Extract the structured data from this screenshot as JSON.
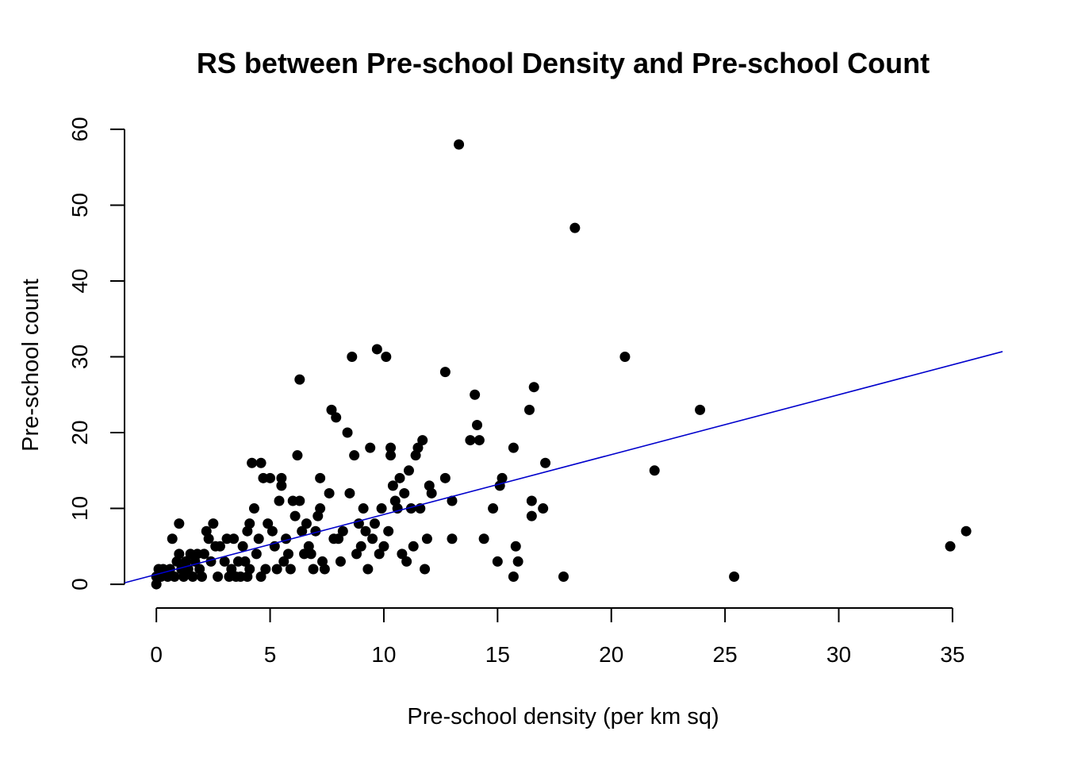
{
  "chart_data": {
    "type": "scatter",
    "title": "RS between Pre-school Density and Pre-school Count",
    "xlabel": "Pre-school density (per km sq)",
    "ylabel": "Pre-school count",
    "xlim": [
      -1.4,
      37.2
    ],
    "ylim": [
      -2.4,
      62.4
    ],
    "xticks": [
      "0",
      "5",
      "10",
      "15",
      "20",
      "25",
      "30",
      "35"
    ],
    "yticks": [
      "0",
      "10",
      "20",
      "30",
      "40",
      "50",
      "60"
    ],
    "grid": false,
    "colors": {
      "points": "#000000",
      "fit_line": "#0000cc"
    },
    "fit_line": {
      "intercept": 1.3,
      "slope": 0.79
    },
    "points": [
      [
        0.0,
        0
      ],
      [
        0.0,
        1
      ],
      [
        0.1,
        2
      ],
      [
        0.2,
        1
      ],
      [
        0.3,
        2
      ],
      [
        0.5,
        1
      ],
      [
        0.6,
        2
      ],
      [
        0.7,
        6
      ],
      [
        0.8,
        1
      ],
      [
        0.9,
        3
      ],
      [
        1.0,
        4
      ],
      [
        1.0,
        8
      ],
      [
        1.1,
        2
      ],
      [
        1.2,
        1
      ],
      [
        1.3,
        3
      ],
      [
        1.4,
        2
      ],
      [
        1.5,
        4
      ],
      [
        1.6,
        1
      ],
      [
        1.7,
        3
      ],
      [
        1.8,
        4
      ],
      [
        1.9,
        2
      ],
      [
        2.0,
        1
      ],
      [
        2.1,
        4
      ],
      [
        2.2,
        7
      ],
      [
        2.3,
        6
      ],
      [
        2.4,
        3
      ],
      [
        2.5,
        8
      ],
      [
        2.6,
        5
      ],
      [
        2.7,
        1
      ],
      [
        2.8,
        5
      ],
      [
        3.0,
        3
      ],
      [
        3.1,
        6
      ],
      [
        3.2,
        1
      ],
      [
        3.3,
        2
      ],
      [
        3.4,
        6
      ],
      [
        3.5,
        1
      ],
      [
        3.6,
        3
      ],
      [
        3.7,
        1
      ],
      [
        3.8,
        5
      ],
      [
        3.9,
        3
      ],
      [
        4.0,
        7
      ],
      [
        4.0,
        1
      ],
      [
        4.1,
        8
      ],
      [
        4.1,
        2
      ],
      [
        4.2,
        16
      ],
      [
        4.3,
        10
      ],
      [
        4.4,
        4
      ],
      [
        4.5,
        6
      ],
      [
        4.6,
        1
      ],
      [
        4.6,
        16
      ],
      [
        4.7,
        14
      ],
      [
        4.8,
        2
      ],
      [
        4.9,
        8
      ],
      [
        5.0,
        14
      ],
      [
        5.1,
        7
      ],
      [
        5.2,
        5
      ],
      [
        5.3,
        2
      ],
      [
        5.4,
        11
      ],
      [
        5.5,
        13
      ],
      [
        5.5,
        14
      ],
      [
        5.6,
        3
      ],
      [
        5.7,
        6
      ],
      [
        5.8,
        4
      ],
      [
        5.9,
        2
      ],
      [
        6.0,
        11
      ],
      [
        6.1,
        9
      ],
      [
        6.2,
        17
      ],
      [
        6.3,
        11
      ],
      [
        6.3,
        27
      ],
      [
        6.4,
        7
      ],
      [
        6.5,
        4
      ],
      [
        6.6,
        8
      ],
      [
        6.7,
        5
      ],
      [
        6.8,
        4
      ],
      [
        6.9,
        2
      ],
      [
        7.0,
        7
      ],
      [
        7.1,
        9
      ],
      [
        7.2,
        10
      ],
      [
        7.2,
        14
      ],
      [
        7.3,
        3
      ],
      [
        7.4,
        2
      ],
      [
        7.6,
        12
      ],
      [
        7.7,
        23
      ],
      [
        7.8,
        6
      ],
      [
        7.9,
        22
      ],
      [
        8.0,
        6
      ],
      [
        8.1,
        3
      ],
      [
        8.2,
        7
      ],
      [
        8.4,
        20
      ],
      [
        8.5,
        12
      ],
      [
        8.6,
        30
      ],
      [
        8.7,
        17
      ],
      [
        8.8,
        4
      ],
      [
        8.9,
        8
      ],
      [
        9.0,
        5
      ],
      [
        9.1,
        10
      ],
      [
        9.2,
        7
      ],
      [
        9.3,
        2
      ],
      [
        9.4,
        18
      ],
      [
        9.5,
        6
      ],
      [
        9.6,
        8
      ],
      [
        9.7,
        31
      ],
      [
        9.8,
        4
      ],
      [
        9.9,
        10
      ],
      [
        10.0,
        5
      ],
      [
        10.1,
        30
      ],
      [
        10.2,
        7
      ],
      [
        10.3,
        17
      ],
      [
        10.3,
        18
      ],
      [
        10.4,
        13
      ],
      [
        10.5,
        11
      ],
      [
        10.6,
        10
      ],
      [
        10.7,
        14
      ],
      [
        10.8,
        4
      ],
      [
        10.9,
        12
      ],
      [
        11.0,
        3
      ],
      [
        11.1,
        15
      ],
      [
        11.2,
        10
      ],
      [
        11.3,
        5
      ],
      [
        11.4,
        17
      ],
      [
        11.5,
        18
      ],
      [
        11.6,
        10
      ],
      [
        11.7,
        19
      ],
      [
        11.8,
        2
      ],
      [
        11.9,
        6
      ],
      [
        12.0,
        13
      ],
      [
        12.1,
        12
      ],
      [
        12.7,
        28
      ],
      [
        12.7,
        14
      ],
      [
        13.0,
        6
      ],
      [
        13.0,
        11
      ],
      [
        13.3,
        58
      ],
      [
        13.8,
        19
      ],
      [
        14.0,
        25
      ],
      [
        14.1,
        21
      ],
      [
        14.2,
        19
      ],
      [
        14.4,
        6
      ],
      [
        14.8,
        10
      ],
      [
        15.0,
        3
      ],
      [
        15.1,
        13
      ],
      [
        15.2,
        14
      ],
      [
        15.7,
        1
      ],
      [
        15.7,
        18
      ],
      [
        15.8,
        5
      ],
      [
        15.9,
        3
      ],
      [
        16.4,
        23
      ],
      [
        16.5,
        11
      ],
      [
        16.5,
        9
      ],
      [
        16.6,
        26
      ],
      [
        17.0,
        10
      ],
      [
        17.1,
        16
      ],
      [
        17.9,
        1
      ],
      [
        18.4,
        47
      ],
      [
        20.6,
        30
      ],
      [
        21.9,
        15
      ],
      [
        23.9,
        23
      ],
      [
        25.4,
        1
      ],
      [
        34.9,
        5
      ],
      [
        35.6,
        7
      ]
    ]
  }
}
